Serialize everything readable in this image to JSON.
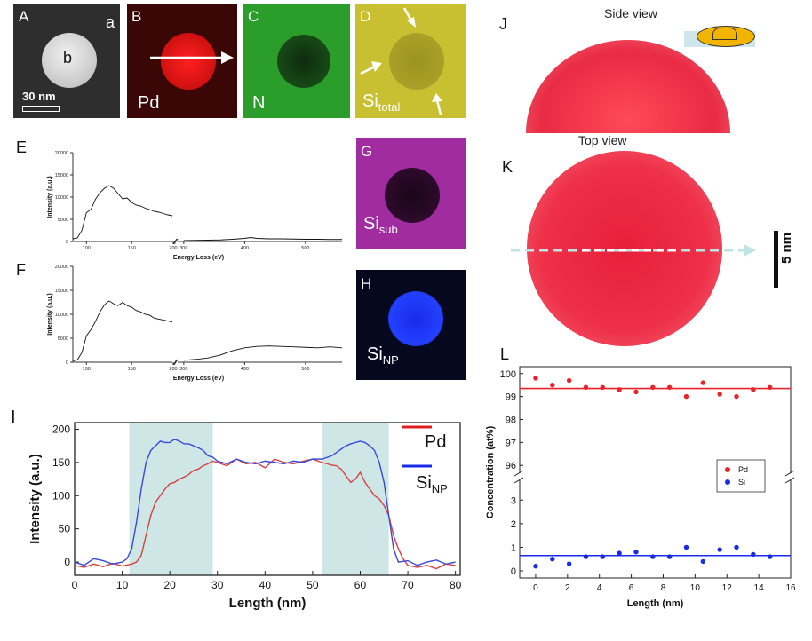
{
  "panels": {
    "A": {
      "letter": "A",
      "region_a": "a",
      "region_b": "b",
      "scalebar": "30 nm"
    },
    "B": {
      "letter": "B",
      "element": "Pd"
    },
    "C": {
      "letter": "C",
      "element": "N"
    },
    "D": {
      "letter": "D",
      "element": "Si",
      "sub": "total"
    },
    "G": {
      "letter": "G",
      "element": "Si",
      "sub": "sub"
    },
    "H": {
      "letter": "H",
      "element": "Si",
      "sub": "NP"
    },
    "J": {
      "letter": "J",
      "title": "Side view"
    },
    "K": {
      "letter": "K",
      "title": "Top view",
      "scalebar": "5 nm"
    },
    "E": {
      "letter": "E"
    },
    "F": {
      "letter": "F"
    },
    "I": {
      "letter": "I"
    },
    "L": {
      "letter": "L"
    }
  },
  "colors": {
    "pd": "#e8232a",
    "n": "#2a9d2a",
    "si_total": "#c8c030",
    "si_sub": "#a02ca0",
    "si_np": "#1a2be8",
    "band": "#cfe6e6",
    "apt": "#e8203a"
  },
  "chart_data": [
    {
      "panel": "E",
      "type": "line",
      "xlabel": "Energy Loss (eV)",
      "ylabel": "Intensity (a.u.)",
      "xticks": [
        "100",
        "150",
        "200",
        "300",
        "400",
        "500"
      ],
      "yticks": [
        "0",
        "5000",
        "10000",
        "15000",
        "20000"
      ],
      "ylim": [
        0,
        20000
      ],
      "segments": [
        {
          "x": [
            85,
            90,
            95,
            100,
            105,
            110,
            115,
            120,
            125,
            130,
            135,
            140,
            145,
            150,
            155,
            160,
            165,
            170,
            175,
            180,
            185,
            190,
            195
          ],
          "y": [
            600,
            800,
            2500,
            6500,
            7200,
            9500,
            11000,
            12000,
            12600,
            12000,
            10800,
            9600,
            9800,
            8800,
            8200,
            8000,
            7500,
            7200,
            6800,
            6600,
            6300,
            6000,
            5800
          ]
        },
        {
          "x": [
            300,
            320,
            340,
            360,
            380,
            400,
            410,
            420,
            440,
            460,
            480,
            500,
            520,
            540,
            560
          ],
          "y": [
            200,
            250,
            300,
            350,
            500,
            700,
            900,
            700,
            600,
            600,
            550,
            500,
            500,
            450,
            450
          ]
        }
      ]
    },
    {
      "panel": "F",
      "type": "line",
      "xlabel": "Energy Loss (eV)",
      "ylabel": "Intensity (a.u.)",
      "xticks": [
        "100",
        "150",
        "200",
        "300",
        "400",
        "500"
      ],
      "yticks": [
        "0",
        "5000",
        "10000",
        "15000",
        "20000"
      ],
      "ylim": [
        0,
        20000
      ],
      "segments": [
        {
          "x": [
            85,
            90,
            95,
            100,
            105,
            110,
            115,
            120,
            125,
            130,
            135,
            140,
            145,
            150,
            155,
            160,
            165,
            170,
            175,
            180,
            185,
            190,
            195
          ],
          "y": [
            300,
            500,
            2000,
            5500,
            6800,
            8500,
            10500,
            12000,
            12800,
            12200,
            11800,
            12500,
            11800,
            11500,
            10800,
            10500,
            10000,
            9800,
            9200,
            9000,
            8800,
            8600,
            8400
          ]
        },
        {
          "x": [
            300,
            320,
            340,
            360,
            380,
            400,
            420,
            440,
            460,
            480,
            500,
            520,
            540,
            560
          ],
          "y": [
            400,
            600,
            900,
            1500,
            2400,
            3000,
            3300,
            3400,
            3300,
            3200,
            3100,
            3000,
            3200,
            3000
          ]
        }
      ]
    },
    {
      "panel": "I",
      "type": "line",
      "xlabel": "Length (nm)",
      "ylabel": "Intensity (a.u.)",
      "xlim": [
        0,
        81
      ],
      "ylim": [
        -20,
        210
      ],
      "xticks": [
        0,
        10,
        20,
        30,
        40,
        50,
        60,
        70,
        80
      ],
      "yticks": [
        0,
        50,
        100,
        150,
        200
      ],
      "bands": [
        [
          11.5,
          29
        ],
        [
          52,
          66
        ]
      ],
      "series": [
        {
          "name": "Pd",
          "color": "#d94040",
          "x": [
            0,
            2,
            4,
            6,
            8,
            10,
            12,
            13,
            14,
            15,
            16,
            17,
            18,
            19,
            20,
            21,
            22,
            23,
            24,
            25,
            26,
            27,
            28,
            29,
            30,
            32,
            34,
            36,
            38,
            40,
            42,
            44,
            46,
            48,
            50,
            52,
            53,
            54,
            55,
            56,
            57,
            58,
            59,
            60,
            61,
            62,
            63,
            64,
            65,
            66,
            67,
            68,
            69,
            70,
            72,
            74,
            76,
            78,
            80
          ],
          "y": [
            -5,
            -8,
            -3,
            -7,
            -2,
            -6,
            -3,
            0,
            10,
            40,
            70,
            90,
            100,
            110,
            118,
            120,
            125,
            128,
            132,
            138,
            140,
            145,
            148,
            152,
            150,
            145,
            155,
            148,
            150,
            142,
            155,
            150,
            148,
            152,
            155,
            150,
            148,
            146,
            145,
            140,
            130,
            120,
            125,
            135,
            120,
            110,
            100,
            95,
            85,
            70,
            40,
            20,
            5,
            -5,
            -8,
            -5,
            -10,
            -3,
            -5
          ]
        },
        {
          "name": "Si",
          "sub": "NP",
          "color": "#3a4ad8",
          "x": [
            0,
            2,
            4,
            6,
            8,
            10,
            11,
            12,
            13,
            14,
            15,
            16,
            17,
            18,
            19,
            20,
            21,
            22,
            23,
            24,
            25,
            26,
            27,
            28,
            29,
            30,
            32,
            34,
            36,
            38,
            40,
            42,
            44,
            46,
            48,
            50,
            52,
            54,
            55,
            56,
            57,
            58,
            59,
            60,
            61,
            62,
            63,
            64,
            65,
            66,
            67,
            68,
            70,
            72,
            74,
            76,
            78,
            80
          ],
          "y": [
            0,
            -5,
            5,
            2,
            -3,
            0,
            5,
            20,
            60,
            110,
            150,
            168,
            175,
            182,
            180,
            180,
            185,
            182,
            178,
            178,
            175,
            172,
            168,
            160,
            158,
            152,
            148,
            155,
            150,
            148,
            152,
            150,
            148,
            152,
            150,
            155,
            155,
            160,
            165,
            170,
            175,
            178,
            180,
            182,
            180,
            175,
            168,
            150,
            120,
            70,
            20,
            0,
            2,
            -5,
            0,
            3,
            -3,
            0
          ]
        }
      ]
    },
    {
      "panel": "L",
      "type": "scatter",
      "xlabel": "Length (nm)",
      "ylabel": "Concentration (at%)",
      "xlim": [
        -1,
        16
      ],
      "xticks": [
        0,
        2,
        4,
        6,
        8,
        10,
        12,
        14,
        16
      ],
      "yticks_upper": [
        96,
        97,
        98,
        99,
        100
      ],
      "yticks_lower": [
        0,
        1,
        2,
        3
      ],
      "series": [
        {
          "name": "Pd",
          "color": "#e8232a",
          "mean": 99.35,
          "x": [
            0,
            1.05,
            2.1,
            3.15,
            4.2,
            5.25,
            6.3,
            7.35,
            8.4,
            9.45,
            10.5,
            11.55,
            12.6,
            13.65,
            14.7
          ],
          "y": [
            99.8,
            99.5,
            99.7,
            99.4,
            99.4,
            99.3,
            99.2,
            99.4,
            99.4,
            99.0,
            99.6,
            99.1,
            99.0,
            99.3,
            99.4
          ]
        },
        {
          "name": "Si",
          "color": "#1a2be8",
          "mean": 0.65,
          "x": [
            0,
            1.05,
            2.1,
            3.15,
            4.2,
            5.25,
            6.3,
            7.35,
            8.4,
            9.45,
            10.5,
            11.55,
            12.6,
            13.65,
            14.7
          ],
          "y": [
            0.2,
            0.5,
            0.3,
            0.6,
            0.6,
            0.75,
            0.8,
            0.6,
            0.6,
            1.0,
            0.4,
            0.9,
            1.0,
            0.7,
            0.6
          ]
        }
      ]
    }
  ]
}
